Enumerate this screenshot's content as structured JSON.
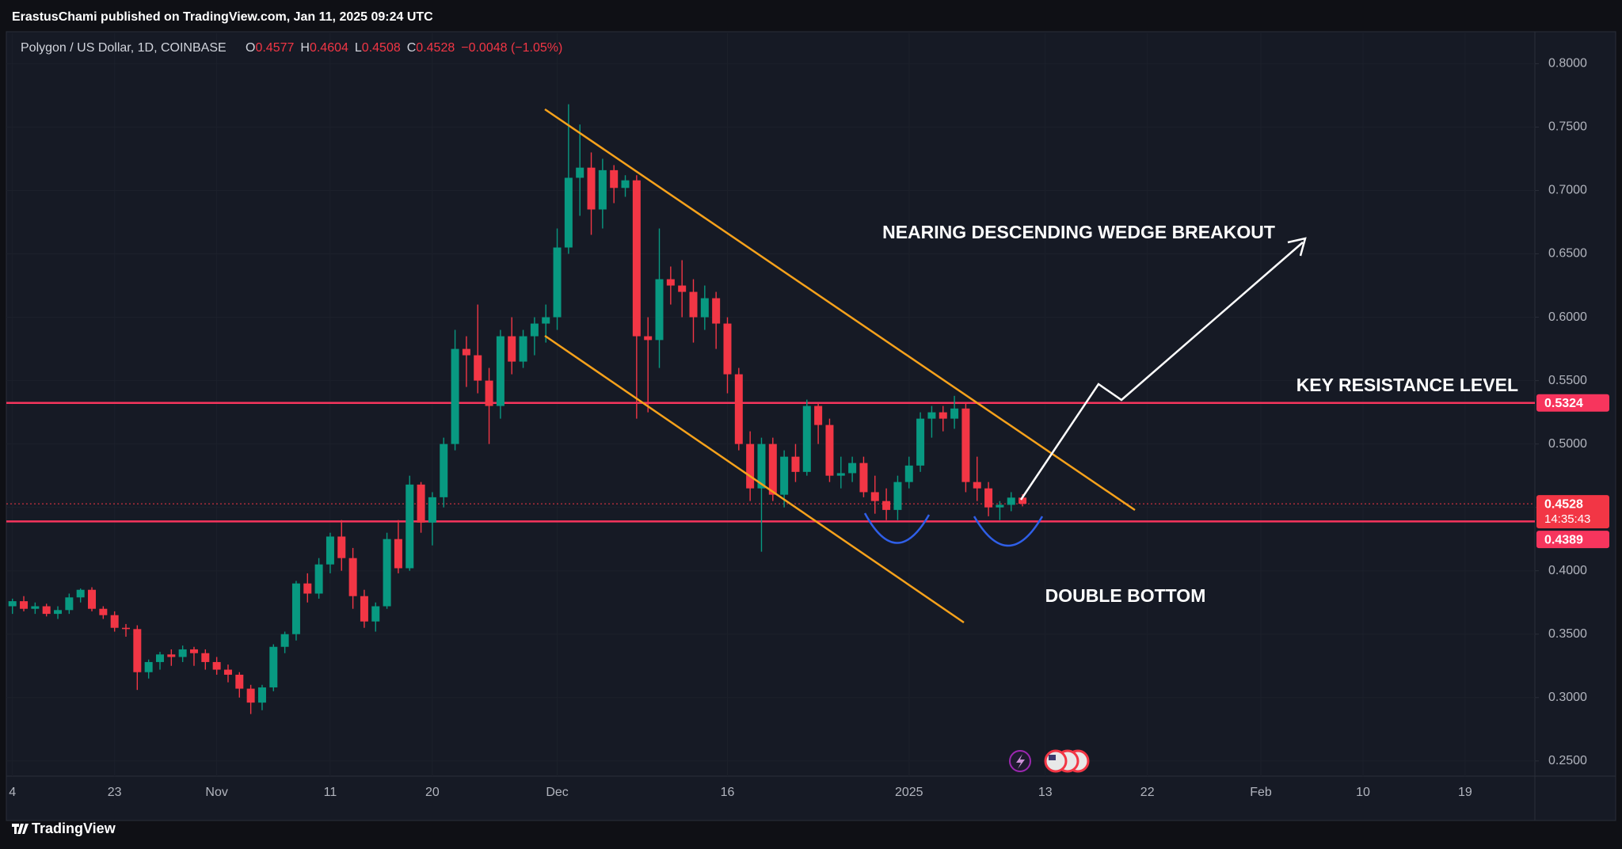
{
  "header": {
    "byline": "ErastusChami published on TradingView.com, Jan 11, 2025 09:24 UTC"
  },
  "footer": {
    "brand": "TradingView"
  },
  "chart_data": {
    "type": "candlestick",
    "title": "Polygon / US Dollar, 1D, COINBASE",
    "legend_labels": {
      "open": "O",
      "high": "H",
      "low": "L",
      "close": "C"
    },
    "change": "−0.0048 (−1.05%)",
    "categories": [
      "4",
      null,
      null,
      null,
      null,
      null,
      null,
      null,
      null,
      "23",
      null,
      null,
      null,
      null,
      null,
      null,
      null,
      null,
      "Nov",
      null,
      null,
      null,
      null,
      null,
      null,
      null,
      null,
      null,
      "11",
      null,
      null,
      null,
      null,
      null,
      null,
      null,
      null,
      "20",
      null,
      null,
      null,
      null,
      null,
      null,
      null,
      null,
      null,
      null,
      "Dec",
      null,
      null,
      null,
      null,
      null,
      null,
      null,
      null,
      null,
      null,
      null,
      null,
      null,
      null,
      "16",
      null,
      null,
      null,
      null,
      null,
      null,
      null,
      null,
      null,
      null,
      null,
      null,
      null,
      null,
      null,
      "2025",
      null,
      null,
      null,
      null,
      null,
      null,
      null,
      null,
      null,
      null,
      null,
      "13",
      null,
      null,
      null,
      null,
      null,
      null,
      null,
      null,
      "22",
      null,
      null,
      null,
      null,
      null,
      null,
      null,
      null,
      null,
      "Feb",
      null,
      null,
      null,
      null,
      null,
      null,
      null,
      null,
      "10",
      null,
      null,
      null,
      null,
      null,
      null,
      null,
      null,
      "19",
      null,
      null,
      null,
      null,
      null,
      null
    ],
    "open": [
      0.372,
      0.376,
      0.37,
      0.372,
      0.366,
      0.369,
      0.379,
      0.385,
      0.37,
      0.365,
      0.355,
      0.354,
      0.32,
      0.328,
      0.334,
      0.332,
      0.338,
      0.335,
      0.328,
      0.322,
      0.318,
      0.307,
      0.296,
      0.308,
      0.34,
      0.35,
      0.39,
      0.382,
      0.405,
      0.427,
      0.41,
      0.38,
      0.36,
      0.372,
      0.425,
      0.402,
      0.468,
      0.438,
      0.458,
      0.5,
      0.575,
      0.57,
      0.55,
      0.53,
      0.585,
      0.565,
      0.585,
      0.595,
      0.6,
      0.655,
      0.71,
      0.718,
      0.685,
      0.716,
      0.702,
      0.708,
      0.585,
      0.582,
      0.63,
      0.625,
      0.62,
      0.6,
      0.615,
      0.595,
      0.555,
      0.5,
      0.465,
      0.5,
      0.46,
      0.49,
      0.478,
      0.53,
      0.515,
      0.475,
      0.477,
      0.485,
      0.462,
      0.455,
      0.448,
      0.47,
      0.483,
      0.52,
      0.525,
      0.52,
      0.528,
      0.47,
      0.465,
      0.45,
      0.452,
      0.4577,
      null,
      null,
      null,
      null,
      null,
      null,
      null,
      null,
      null,
      null,
      null,
      null,
      null,
      null,
      null,
      null,
      null,
      null,
      null,
      null,
      null,
      null,
      null,
      null,
      null,
      null,
      null,
      null,
      null,
      null,
      null,
      null,
      null,
      null,
      null,
      null,
      null,
      null,
      null,
      null,
      null,
      null,
      null,
      null,
      null
    ],
    "high": [
      0.378,
      0.38,
      0.375,
      0.374,
      0.372,
      0.382,
      0.386,
      0.387,
      0.372,
      0.368,
      0.358,
      0.357,
      0.33,
      0.336,
      0.338,
      0.341,
      0.34,
      0.338,
      0.332,
      0.326,
      0.32,
      0.31,
      0.31,
      0.342,
      0.352,
      0.392,
      0.398,
      0.41,
      0.43,
      0.44,
      0.418,
      0.385,
      0.375,
      0.43,
      0.44,
      0.475,
      0.47,
      0.462,
      0.505,
      0.59,
      0.585,
      0.61,
      0.56,
      0.59,
      0.6,
      0.59,
      0.6,
      0.61,
      0.67,
      0.768,
      0.752,
      0.73,
      0.725,
      0.72,
      0.712,
      0.712,
      0.6,
      0.67,
      0.64,
      0.645,
      0.63,
      0.625,
      0.62,
      0.6,
      0.56,
      0.51,
      0.505,
      0.505,
      0.495,
      0.5,
      0.535,
      0.532,
      0.52,
      0.49,
      0.49,
      0.49,
      0.475,
      0.465,
      0.475,
      0.49,
      0.525,
      0.53,
      0.53,
      0.538,
      0.532,
      0.49,
      0.47,
      0.455,
      0.462,
      0.4604,
      null,
      null,
      null,
      null,
      null,
      null,
      null,
      null,
      null,
      null,
      null,
      null,
      null,
      null,
      null,
      null,
      null,
      null,
      null,
      null,
      null,
      null,
      null,
      null,
      null,
      null,
      null,
      null,
      null,
      null,
      null,
      null,
      null,
      null,
      null,
      null,
      null,
      null,
      null,
      null,
      null,
      null,
      null,
      null,
      null
    ],
    "low": [
      0.366,
      0.368,
      0.366,
      0.364,
      0.362,
      0.366,
      0.375,
      0.368,
      0.362,
      0.352,
      0.348,
      0.306,
      0.315,
      0.322,
      0.325,
      0.328,
      0.325,
      0.322,
      0.318,
      0.312,
      0.3,
      0.287,
      0.29,
      0.305,
      0.335,
      0.345,
      0.375,
      0.378,
      0.398,
      0.4,
      0.37,
      0.355,
      0.352,
      0.37,
      0.398,
      0.4,
      0.43,
      0.42,
      0.45,
      0.495,
      0.545,
      0.54,
      0.5,
      0.52,
      0.555,
      0.56,
      0.57,
      0.58,
      0.59,
      0.65,
      0.68,
      0.665,
      0.67,
      0.69,
      0.695,
      0.52,
      0.525,
      0.56,
      0.61,
      0.6,
      0.58,
      0.59,
      0.575,
      0.54,
      0.495,
      0.455,
      0.415,
      0.455,
      0.45,
      0.47,
      0.475,
      0.5,
      0.47,
      0.465,
      0.47,
      0.458,
      0.445,
      0.44,
      0.44,
      0.465,
      0.478,
      0.505,
      0.51,
      0.512,
      0.462,
      0.455,
      0.443,
      0.44,
      0.447,
      0.4508,
      null,
      null,
      null,
      null,
      null,
      null,
      null,
      null,
      null,
      null,
      null,
      null,
      null,
      null,
      null,
      null,
      null,
      null,
      null,
      null,
      null,
      null,
      null,
      null,
      null,
      null,
      null,
      null,
      null,
      null,
      null,
      null,
      null,
      null,
      null,
      null,
      null,
      null,
      null,
      null,
      null,
      null,
      null,
      null,
      null
    ],
    "close": [
      0.376,
      0.37,
      0.372,
      0.366,
      0.369,
      0.379,
      0.385,
      0.37,
      0.365,
      0.355,
      0.354,
      0.32,
      0.328,
      0.334,
      0.332,
      0.338,
      0.335,
      0.328,
      0.322,
      0.318,
      0.307,
      0.296,
      0.308,
      0.34,
      0.35,
      0.39,
      0.382,
      0.405,
      0.427,
      0.41,
      0.38,
      0.36,
      0.372,
      0.425,
      0.402,
      0.468,
      0.438,
      0.458,
      0.5,
      0.575,
      0.57,
      0.55,
      0.53,
      0.585,
      0.565,
      0.585,
      0.595,
      0.6,
      0.655,
      0.71,
      0.718,
      0.685,
      0.716,
      0.702,
      0.708,
      0.585,
      0.582,
      0.63,
      0.625,
      0.62,
      0.6,
      0.615,
      0.595,
      0.555,
      0.5,
      0.465,
      0.5,
      0.46,
      0.49,
      0.478,
      0.53,
      0.515,
      0.475,
      0.477,
      0.485,
      0.462,
      0.455,
      0.448,
      0.47,
      0.483,
      0.52,
      0.525,
      0.52,
      0.528,
      0.47,
      0.465,
      0.45,
      0.452,
      0.4577,
      0.4528,
      null,
      null,
      null,
      null,
      null,
      null,
      null,
      null,
      null,
      null,
      null,
      null,
      null,
      null,
      null,
      null,
      null,
      null,
      null,
      null,
      null,
      null,
      null,
      null,
      null,
      null,
      null,
      null,
      null,
      null,
      null,
      null,
      null,
      null,
      null,
      null,
      null,
      null,
      null,
      null,
      null,
      null,
      null,
      null,
      null
    ],
    "up_color": "#089981",
    "down_color": "#f23645",
    "ylim": [
      0.238,
      0.824
    ],
    "yticks": [
      {
        "value": 0.25,
        "label": "0.2500"
      },
      {
        "value": 0.3,
        "label": "0.3000"
      },
      {
        "value": 0.35,
        "label": "0.3500"
      },
      {
        "value": 0.4,
        "label": "0.4000"
      },
      {
        "value": 0.45,
        "label": "0.4500"
      },
      {
        "value": 0.5,
        "label": "0.5000"
      },
      {
        "value": 0.55,
        "label": "0.5500"
      },
      {
        "value": 0.6,
        "label": "0.6000"
      },
      {
        "value": 0.65,
        "label": "0.6500"
      },
      {
        "value": 0.7,
        "label": "0.7000"
      },
      {
        "value": 0.75,
        "label": "0.7500"
      },
      {
        "value": 0.8,
        "label": "0.8000"
      }
    ],
    "grid": true,
    "price_lines": [
      {
        "value": 0.5324,
        "color": "#f7355d"
      },
      {
        "value": 0.4389,
        "color": "#f7355d"
      }
    ],
    "countdown": "14:35:43",
    "annotations": {
      "breakout": "NEARING DESCENDING WEDGE BREAKOUT",
      "resistance": "KEY RESISTANCE LEVEL",
      "double_bottom": "DOUBLE BOTTOM"
    }
  }
}
